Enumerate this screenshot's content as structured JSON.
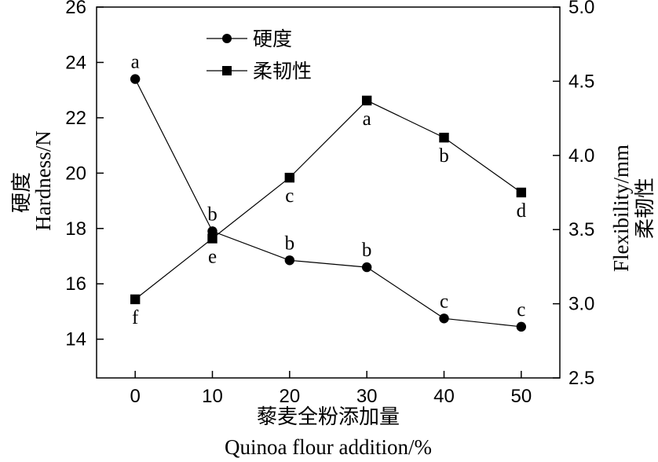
{
  "chart_data": {
    "type": "line",
    "x": [
      0,
      10,
      20,
      30,
      40,
      50
    ],
    "xlabel_cn": "藜麦全粉添加量",
    "xlabel_en": "Quinoa flour addition/%",
    "ylabel_left_cn": "硬度",
    "ylabel_left_en": "Hardness/N",
    "ylabel_right_en": "Flexibility/mm",
    "ylabel_right_cn": "柔韧性",
    "x_ticks": [
      "0",
      "10",
      "20",
      "30",
      "40",
      "50"
    ],
    "y_left_ticks": [
      "14",
      "16",
      "18",
      "20",
      "22",
      "24",
      "26"
    ],
    "y_right_ticks": [
      "2.5",
      "3.0",
      "3.5",
      "4.0",
      "4.5",
      "5.0"
    ],
    "xlim": [
      -5,
      55
    ],
    "ylim_left": [
      12.6,
      26
    ],
    "ylim_right": [
      2.5,
      5.0
    ],
    "grid": false,
    "legend_position": "top-center",
    "series": [
      {
        "name": "硬度",
        "axis": "left",
        "marker": "circle",
        "values": [
          23.4,
          17.9,
          16.85,
          16.6,
          14.75,
          14.45
        ],
        "labels": [
          "a",
          "b",
          "b",
          "b",
          "c",
          "c"
        ],
        "label_position": "above"
      },
      {
        "name": "柔韧性",
        "axis": "right",
        "marker": "square",
        "values": [
          3.03,
          3.44,
          3.85,
          4.37,
          4.12,
          3.75
        ],
        "labels": [
          "f",
          "e",
          "c",
          "a",
          "b",
          "d"
        ],
        "label_position": "below"
      }
    ]
  }
}
